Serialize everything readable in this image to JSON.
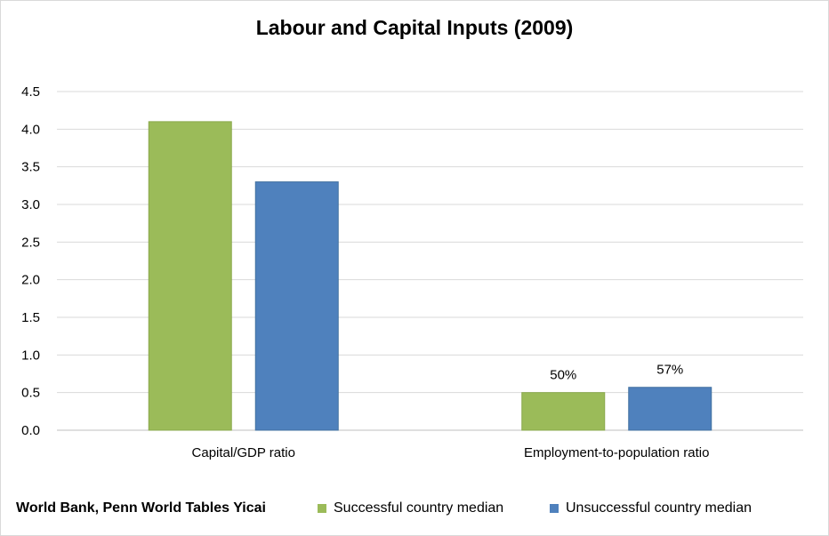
{
  "source": "World Bank, Penn World Tables Yicai",
  "colors": {
    "successful": "#9bbb59",
    "unsuccessful": "#4f81bd",
    "grid": "#d9d9d9",
    "axis": "#bfbfbf"
  },
  "chart_data": {
    "type": "bar",
    "title": "Labour and Capital Inputs (2009)",
    "xlabel": "",
    "ylabel": "",
    "ylim": [
      0,
      4.5
    ],
    "yticks": [
      "0.0",
      "0.5",
      "1.0",
      "1.5",
      "2.0",
      "2.5",
      "3.0",
      "3.5",
      "4.0",
      "4.5"
    ],
    "categories": [
      "Capital/GDP ratio",
      "Employment-to-population ratio"
    ],
    "series": [
      {
        "name": "Successful country median",
        "values": [
          4.1,
          0.5
        ],
        "labels": [
          "",
          "50%"
        ]
      },
      {
        "name": "Unsuccessful country median",
        "values": [
          3.3,
          0.57
        ],
        "labels": [
          "",
          "57%"
        ]
      }
    ],
    "legend": "bottom",
    "grid": true
  }
}
